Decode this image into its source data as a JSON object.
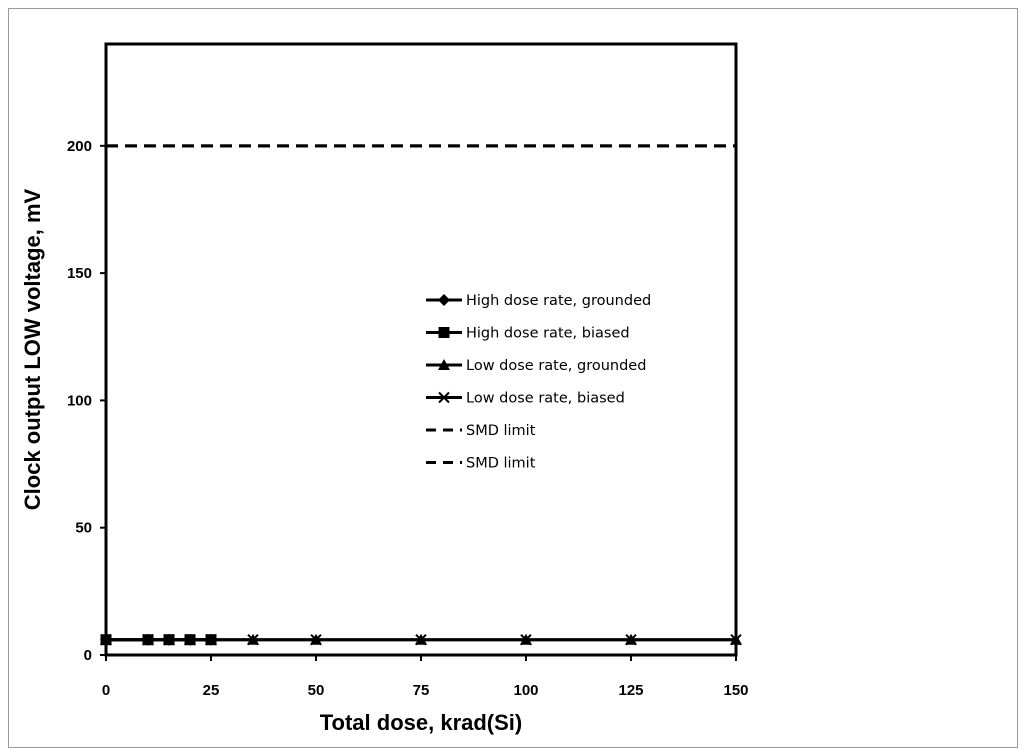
{
  "chart_data": {
    "type": "line",
    "xlabel": "Total dose, krad(Si)",
    "ylabel": "Clock output LOW voltage, mV",
    "xlim": [
      0,
      150
    ],
    "ylim": [
      0,
      240
    ],
    "xticks": [
      0,
      25,
      50,
      75,
      100,
      125,
      150
    ],
    "yticks": [
      0,
      50,
      100,
      150,
      200
    ],
    "grid": false,
    "legend_position": "center-right",
    "series": [
      {
        "name": "High dose rate, grounded",
        "marker": "diamond",
        "line": "solid",
        "x": [
          0,
          10,
          15,
          20,
          25
        ],
        "y": [
          6,
          6,
          6,
          6,
          6
        ]
      },
      {
        "name": "High dose rate, biased",
        "marker": "square",
        "line": "solid",
        "x": [
          0,
          10,
          15,
          20,
          25
        ],
        "y": [
          6,
          6,
          6,
          6,
          6
        ]
      },
      {
        "name": "Low dose rate, grounded",
        "marker": "triangle",
        "line": "solid",
        "x": [
          0,
          10,
          15,
          20,
          25,
          35,
          50,
          75,
          100,
          125,
          150
        ],
        "y": [
          6,
          6,
          6,
          6,
          6,
          6,
          6,
          6,
          6,
          6,
          6
        ]
      },
      {
        "name": "Low dose rate, biased",
        "marker": "x",
        "line": "solid",
        "x": [
          0,
          10,
          15,
          20,
          25,
          35,
          50,
          75,
          100,
          125,
          150
        ],
        "y": [
          6,
          6,
          6,
          6,
          6,
          6,
          6,
          6,
          6,
          6,
          6
        ]
      },
      {
        "name": "SMD limit",
        "marker": "none",
        "line": "dashed",
        "x": [
          0,
          150
        ],
        "y": [
          200,
          200
        ]
      },
      {
        "name": "SMD limit",
        "marker": "none",
        "line": "dashed",
        "x": [
          0,
          150
        ],
        "y": [
          200,
          200
        ]
      }
    ],
    "colors": {
      "series": "#000000",
      "frame": "#9a9a9a"
    }
  }
}
